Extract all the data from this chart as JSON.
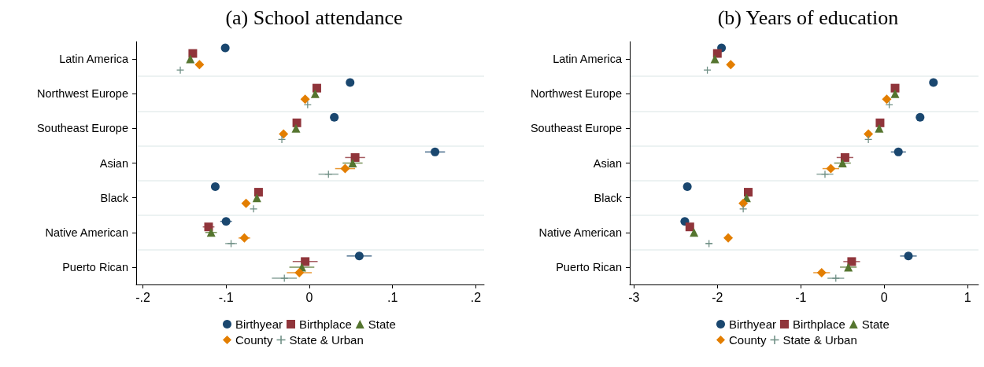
{
  "chart_data": [
    {
      "type": "scatter",
      "title": "(a) School attendance",
      "orientation": "horizontal",
      "grid": "y",
      "legend": "bottom",
      "categories": [
        "Latin America",
        "Northwest Europe",
        "Southeast Europe",
        "Asian",
        "Black",
        "Native American",
        "Puerto Rican"
      ],
      "xlim": [
        -0.208,
        0.21
      ],
      "xticks": [
        {
          "value": -0.2,
          "label": "-.2"
        },
        {
          "value": -0.1,
          "label": "-.1"
        },
        0,
        {
          "value": 0.1,
          "label": ".1"
        },
        {
          "value": 0.2,
          "label": ".2"
        }
      ],
      "series": [
        {
          "name": "Birthyear",
          "color": "#1a476f",
          "marker": "circle",
          "values": [
            -0.101,
            0.049,
            0.03,
            0.151,
            -0.113,
            -0.1,
            0.06
          ],
          "errors": [
            null,
            null,
            null,
            0.012,
            null,
            0.007,
            0.015
          ]
        },
        {
          "name": "Birthplace",
          "color": "#90353b",
          "marker": "square",
          "values": [
            -0.14,
            0.009,
            -0.015,
            0.055,
            -0.061,
            -0.121,
            -0.005
          ],
          "errors": [
            null,
            null,
            null,
            0.012,
            null,
            0.007,
            0.015
          ]
        },
        {
          "name": "State",
          "color": "#55752f",
          "marker": "triangle",
          "values": [
            -0.143,
            0.007,
            -0.016,
            0.052,
            -0.063,
            -0.118,
            -0.009
          ],
          "errors": [
            null,
            null,
            null,
            0.012,
            null,
            0.007,
            0.015
          ]
        },
        {
          "name": "County",
          "color": "#e37e00",
          "marker": "diamond",
          "values": [
            -0.132,
            -0.005,
            -0.031,
            0.043,
            -0.076,
            -0.078,
            -0.012
          ],
          "errors": [
            null,
            null,
            null,
            0.012,
            null,
            0.007,
            0.015
          ]
        },
        {
          "name": "State & Urban",
          "color": "#6e8e84",
          "marker": "cross",
          "values": [
            -0.155,
            -0.002,
            -0.033,
            0.023,
            -0.067,
            -0.094,
            -0.03
          ],
          "errors": [
            null,
            null,
            null,
            0.012,
            null,
            0.007,
            0.015
          ]
        }
      ]
    },
    {
      "type": "scatter",
      "title": "(b) Years of education",
      "orientation": "horizontal",
      "grid": "y",
      "legend": "bottom",
      "categories": [
        "Latin America",
        "Northwest Europe",
        "Southeast Europe",
        "Asian",
        "Black",
        "Native American",
        "Puerto Rican"
      ],
      "xlim": [
        -3.05,
        1.13
      ],
      "xticks": [
        -3,
        -2,
        -1,
        0,
        1
      ],
      "series": [
        {
          "name": "Birthyear",
          "color": "#1a476f",
          "marker": "circle",
          "values": [
            -1.95,
            0.59,
            0.43,
            0.17,
            -2.36,
            -2.39,
            0.29
          ],
          "errors": [
            null,
            null,
            null,
            0.09,
            null,
            0.05,
            0.1
          ]
        },
        {
          "name": "Birthplace",
          "color": "#90353b",
          "marker": "square",
          "values": [
            -2.0,
            0.13,
            -0.05,
            -0.47,
            -1.63,
            -2.33,
            -0.39
          ],
          "errors": [
            null,
            null,
            null,
            0.1,
            null,
            null,
            0.1
          ]
        },
        {
          "name": "State",
          "color": "#55752f",
          "marker": "triangle",
          "values": [
            -2.03,
            0.13,
            -0.06,
            -0.5,
            -1.65,
            -2.28,
            -0.43
          ],
          "errors": [
            null,
            null,
            null,
            0.1,
            null,
            null,
            0.1
          ]
        },
        {
          "name": "County",
          "color": "#e37e00",
          "marker": "diamond",
          "values": [
            -1.84,
            0.03,
            -0.19,
            -0.64,
            -1.69,
            -1.87,
            -0.75
          ],
          "errors": [
            null,
            null,
            null,
            0.1,
            null,
            null,
            0.1
          ]
        },
        {
          "name": "State & Urban",
          "color": "#6e8e84",
          "marker": "cross",
          "values": [
            -2.12,
            0.06,
            -0.19,
            -0.71,
            -1.69,
            -2.1,
            -0.58
          ],
          "errors": [
            null,
            null,
            null,
            0.1,
            null,
            0.04,
            0.1
          ]
        }
      ]
    }
  ]
}
